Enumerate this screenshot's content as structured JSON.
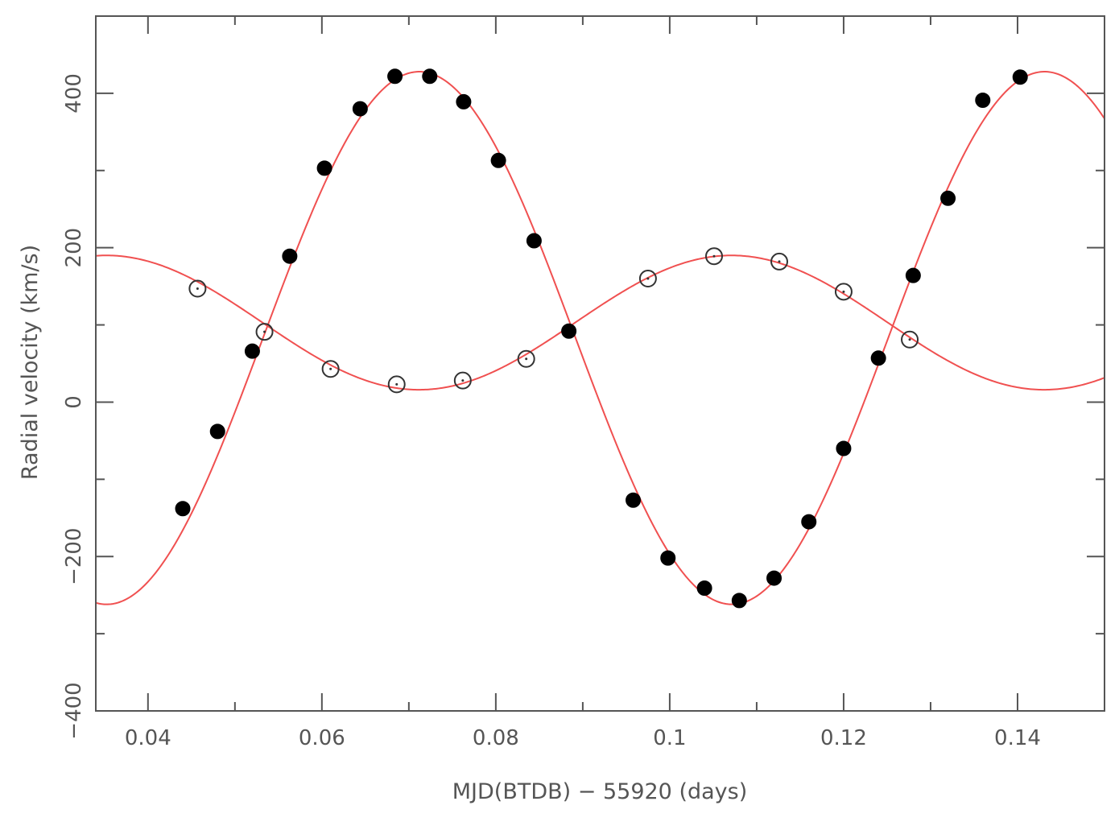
{
  "chart_data": {
    "type": "scatter",
    "title": "",
    "xlabel": "MJD(BTDB) − 55920 (days)",
    "ylabel": "Radial velocity (km/s)",
    "xlim": [
      0.034,
      0.15
    ],
    "ylim": [
      -400,
      500
    ],
    "x_ticks": [
      {
        "value": 0.04,
        "label": "0.04"
      },
      {
        "value": 0.06,
        "label": "0.06"
      },
      {
        "value": 0.08,
        "label": "0.08"
      },
      {
        "value": 0.1,
        "label": "0.1"
      },
      {
        "value": 0.12,
        "label": "0.12"
      },
      {
        "value": 0.14,
        "label": "0.14"
      }
    ],
    "y_ticks": [
      {
        "value": -400,
        "label": "−400"
      },
      {
        "value": -200,
        "label": "−200"
      },
      {
        "value": 0,
        "label": "0"
      },
      {
        "value": 200,
        "label": "200"
      },
      {
        "value": 400,
        "label": "400"
      }
    ],
    "x_minor_step": 0.01,
    "y_minor_step": 100,
    "grid": false,
    "colors": {
      "model_curve": "#f05050",
      "filled_points": "#000000",
      "open_points": "#333333",
      "axes": "#555555"
    },
    "series": [
      {
        "marker": "filled-circle",
        "x": [
          0.044,
          0.048,
          0.052,
          0.0563,
          0.0603,
          0.0644,
          0.0684,
          0.0724,
          0.0763,
          0.0803,
          0.0844,
          0.0884,
          0.0958,
          0.0998,
          0.104,
          0.108,
          0.112,
          0.116,
          0.12,
          0.124,
          0.128,
          0.132,
          0.136,
          0.1403
        ],
        "y": [
          -138,
          -38,
          66,
          189,
          303,
          380,
          422,
          422,
          389,
          313,
          209,
          92,
          -127,
          -202,
          -241,
          -257,
          -228,
          -155,
          -60,
          57,
          164,
          264,
          391,
          421
        ]
      },
      {
        "marker": "open-circle",
        "x": [
          0.0457,
          0.0534,
          0.061,
          0.0686,
          0.0762,
          0.0835,
          0.0975,
          0.1051,
          0.1126,
          0.12,
          0.1276
        ],
        "y": [
          147,
          91,
          43,
          23,
          28,
          56,
          160,
          189,
          182,
          143,
          81
        ]
      },
      {
        "marker": "line",
        "model": {
          "gamma": 83,
          "amplitude": 345,
          "period": 0.0719,
          "t_max": 0.0712
        }
      },
      {
        "marker": "line",
        "model": {
          "gamma": 103,
          "amplitude": 87,
          "period": 0.0719,
          "t_max": 0.1071
        }
      }
    ]
  }
}
